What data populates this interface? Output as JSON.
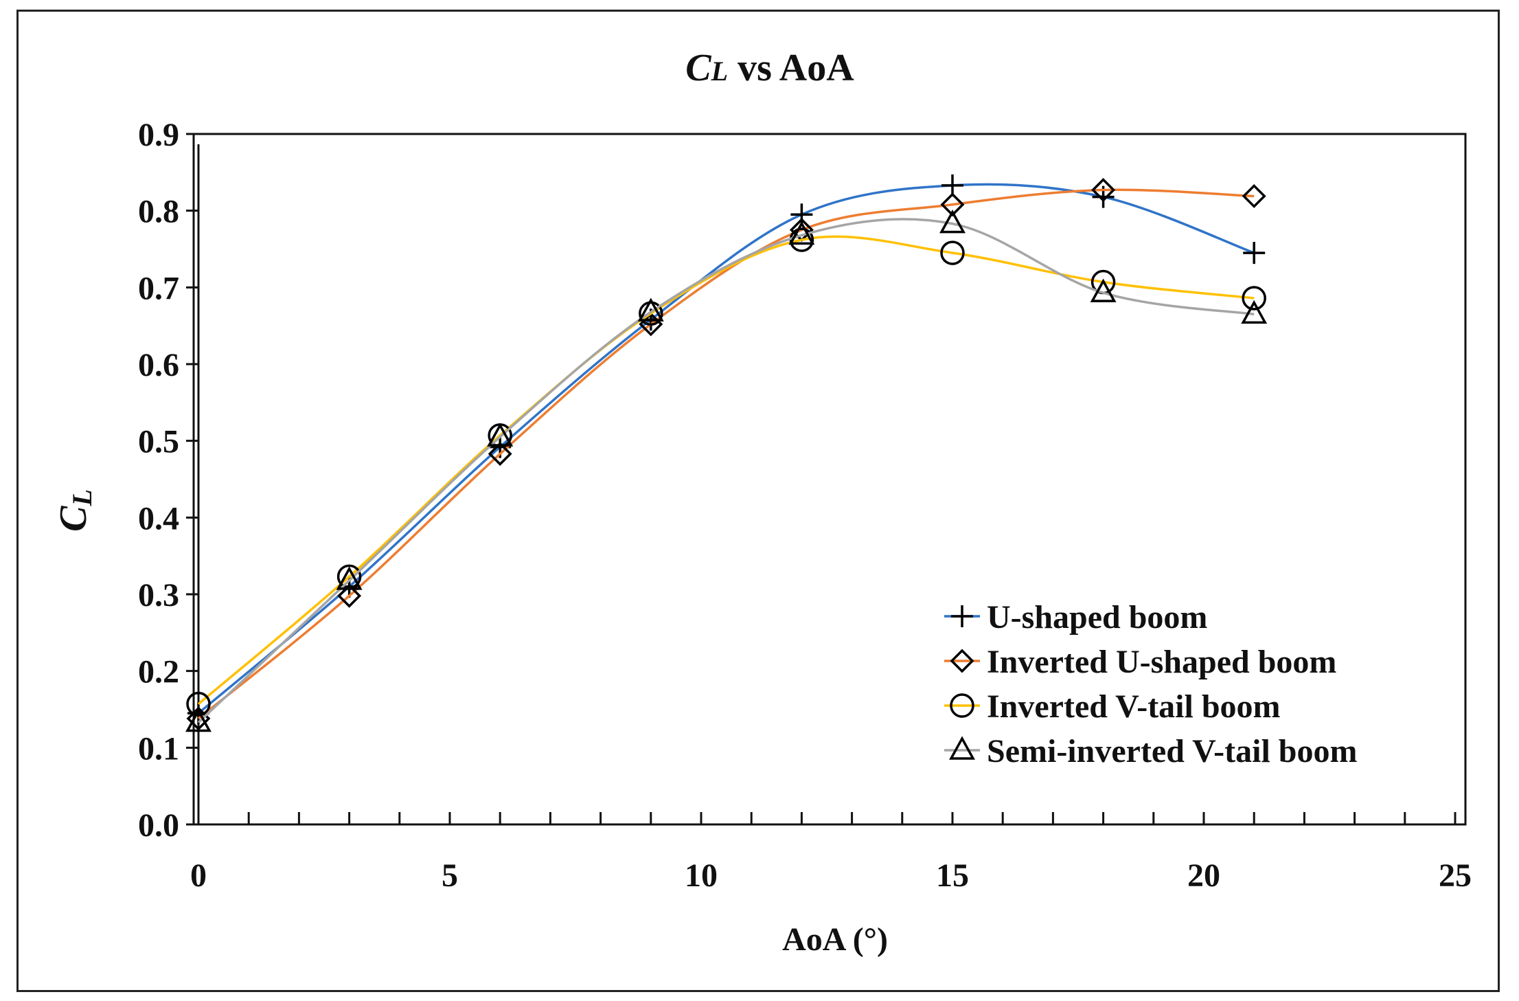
{
  "chart_data": {
    "type": "line",
    "title": "CL vs AoA",
    "title_parts": {
      "symbol": "C",
      "subscript": "L",
      "rest": " vs AoA"
    },
    "xlabel": "AoA (°)",
    "ylabel": "CL",
    "ylabel_parts": {
      "symbol": "C",
      "subscript": "L"
    },
    "xlim": [
      0,
      25
    ],
    "ylim": [
      0.0,
      0.9
    ],
    "x_major_ticks": [
      0,
      5,
      10,
      15,
      20,
      25
    ],
    "x_minor_step": 1,
    "y_ticks": [
      0.0,
      0.1,
      0.2,
      0.3,
      0.4,
      0.5,
      0.6,
      0.7,
      0.8,
      0.9
    ],
    "y_tick_labels": [
      "0.0",
      "0.1",
      "0.2",
      "0.3",
      "0.4",
      "0.5",
      "0.6",
      "0.7",
      "0.8",
      "0.9"
    ],
    "x_tick_labels": [
      "0",
      "5",
      "10",
      "15",
      "20",
      "25"
    ],
    "grid": false,
    "legend_position": "bottom-right",
    "x": [
      0,
      3,
      6,
      9,
      12,
      15,
      18,
      21
    ],
    "series": [
      {
        "name": "U-shaped boom",
        "color": "#2f74c8",
        "marker": "plus",
        "values": [
          0.145,
          0.31,
          0.492,
          0.658,
          0.795,
          0.833,
          0.818,
          0.745
        ]
      },
      {
        "name": "Inverted U-shaped boom",
        "color": "#ed7d31",
        "marker": "diamond",
        "values": [
          0.138,
          0.298,
          0.483,
          0.652,
          0.775,
          0.808,
          0.827,
          0.819
        ]
      },
      {
        "name": "Inverted V-tail boom",
        "color": "#ffc000",
        "marker": "circle",
        "values": [
          0.157,
          0.323,
          0.507,
          0.666,
          0.762,
          0.745,
          0.707,
          0.686
        ]
      },
      {
        "name": "Semi-inverted V-tail boom",
        "color": "#a5a5a5",
        "marker": "triangle",
        "values": [
          0.133,
          0.318,
          0.505,
          0.668,
          0.768,
          0.783,
          0.693,
          0.665
        ]
      }
    ]
  }
}
